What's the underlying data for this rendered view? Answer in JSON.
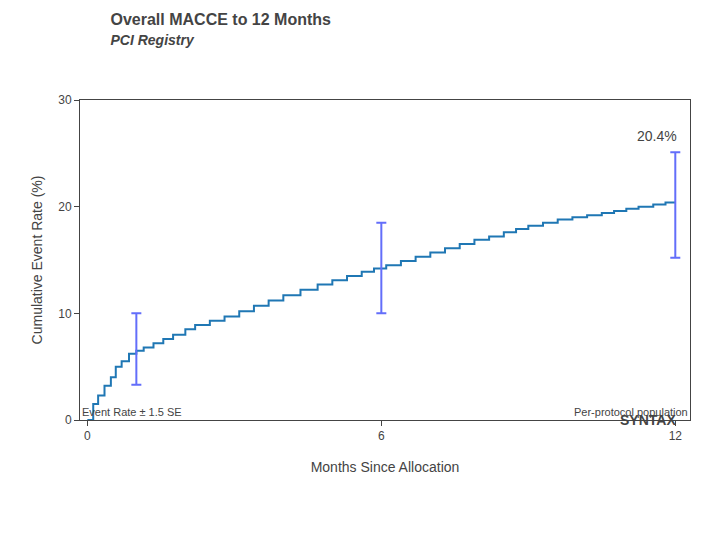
{
  "chart_data": {
    "type": "step",
    "title": "Overall MACCE to 12 Months",
    "subtitle": "PCI Registry",
    "xlabel": "Months Since Allocation",
    "ylabel": "Cumulative Event Rate (%)",
    "annotation": "20.4%",
    "logo": "SYNTAX",
    "footer_left": "Event Rate ± 1.5 SE",
    "footer_right": "Per-protocol population",
    "x": [
      0,
      0.12,
      0.22,
      0.35,
      0.48,
      0.58,
      0.7,
      0.85,
      1.0,
      1.15,
      1.35,
      1.55,
      1.75,
      2.0,
      2.2,
      2.5,
      2.8,
      3.1,
      3.4,
      3.7,
      4.0,
      4.35,
      4.7,
      5.0,
      5.3,
      5.6,
      5.85,
      6.1,
      6.4,
      6.7,
      7.0,
      7.3,
      7.6,
      7.9,
      8.2,
      8.5,
      8.75,
      9.0,
      9.3,
      9.6,
      9.9,
      10.2,
      10.5,
      10.75,
      11.0,
      11.25,
      11.55,
      11.8,
      12.0
    ],
    "values": [
      0,
      1.5,
      2.3,
      3.2,
      4.0,
      5.0,
      5.5,
      6.2,
      6.5,
      6.8,
      7.2,
      7.6,
      8.0,
      8.5,
      8.9,
      9.3,
      9.7,
      10.2,
      10.7,
      11.2,
      11.7,
      12.2,
      12.7,
      13.1,
      13.5,
      13.9,
      14.2,
      14.5,
      14.9,
      15.3,
      15.7,
      16.1,
      16.5,
      16.9,
      17.2,
      17.6,
      17.9,
      18.2,
      18.5,
      18.8,
      19.0,
      19.2,
      19.4,
      19.6,
      19.8,
      20.0,
      20.2,
      20.4,
      20.4
    ],
    "error_bars": [
      {
        "x": 1.0,
        "y": 6.5,
        "minus": 3.2,
        "plus": 3.5
      },
      {
        "x": 6.0,
        "y": 14.2,
        "minus": 4.2,
        "plus": 4.3
      },
      {
        "x": 12.0,
        "y": 20.4,
        "minus": 5.2,
        "plus": 4.7
      }
    ],
    "xlim": [
      -0.15,
      12.3
    ],
    "xticks": [
      0,
      6,
      12
    ],
    "ylim": [
      0,
      30
    ],
    "yticks": [
      0,
      10,
      20,
      30
    ],
    "grid": false
  }
}
